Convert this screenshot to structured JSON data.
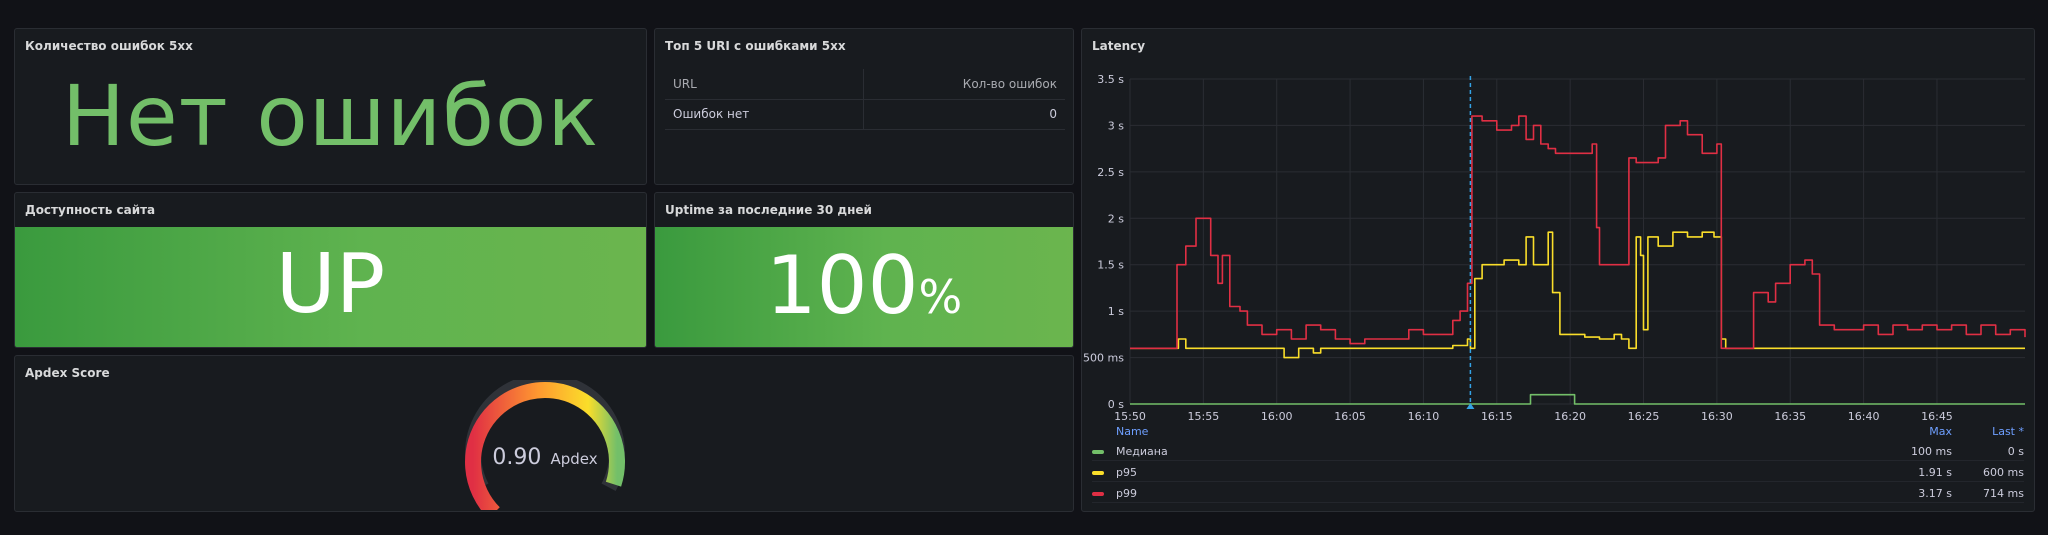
{
  "panels": {
    "errors5xx": {
      "title": "Количество ошибок 5xx",
      "value": "Нет ошибок",
      "color": "#73bf69"
    },
    "top5": {
      "title": "Топ 5 URI с ошибками 5xx",
      "columns": [
        "URL",
        "Кол-во ошибок"
      ],
      "rows": [
        [
          "Ошибок нет",
          "0"
        ]
      ]
    },
    "availability": {
      "title": "Доступность сайта",
      "value": "UP"
    },
    "uptime": {
      "title": "Uptime за последние 30 дней",
      "value": "100",
      "unit": "%"
    },
    "apdex": {
      "title": "Apdex Score",
      "value": "0.90",
      "label": "Apdex",
      "score": 0.9
    },
    "latency": {
      "title": "Latency",
      "legend_headers": {
        "name": "Name",
        "max": "Max",
        "last": "Last *"
      },
      "legend": [
        {
          "name": "Медиана",
          "max": "100 ms",
          "last": "0 s",
          "color": "#73bf69"
        },
        {
          "name": "p95",
          "max": "1.91 s",
          "last": "600 ms",
          "color": "#fade2a"
        },
        {
          "name": "p99",
          "max": "3.17 s",
          "last": "714 ms",
          "color": "#e02f44"
        }
      ]
    }
  },
  "chart_data": {
    "type": "line",
    "title": "Latency",
    "y_ticks": [
      "0 s",
      "500 ms",
      "1 s",
      "1.5 s",
      "2 s",
      "2.5 s",
      "3 s",
      "3.5 s"
    ],
    "x_ticks": [
      "15:50",
      "15:55",
      "16:00",
      "16:05",
      "16:10",
      "16:15",
      "16:20",
      "16:25",
      "16:30",
      "16:35",
      "16:40",
      "16:45"
    ],
    "ylim": [
      0,
      3.5
    ],
    "x_range_minutes_from_1550": [
      0,
      61
    ],
    "cursor_minute": 23.2,
    "grid": true,
    "legend_placement": "bottom",
    "series": [
      {
        "name": "Медиана",
        "color": "#73bf69",
        "points": [
          [
            0,
            0
          ],
          [
            27,
            0
          ],
          [
            27.3,
            0.1
          ],
          [
            30,
            0.1
          ],
          [
            30.3,
            0
          ],
          [
            61,
            0
          ]
        ]
      },
      {
        "name": "p95",
        "color": "#fade2a",
        "points": [
          [
            0,
            0.6
          ],
          [
            3,
            0.6
          ],
          [
            3.3,
            0.7
          ],
          [
            3.8,
            0.6
          ],
          [
            10,
            0.6
          ],
          [
            10.5,
            0.5
          ],
          [
            11.5,
            0.6
          ],
          [
            12.5,
            0.55
          ],
          [
            13,
            0.6
          ],
          [
            20,
            0.6
          ],
          [
            22,
            0.63
          ],
          [
            23,
            0.7
          ],
          [
            23.2,
            0.6
          ],
          [
            23.5,
            1.35
          ],
          [
            24,
            1.5
          ],
          [
            25.5,
            1.55
          ],
          [
            26.5,
            1.5
          ],
          [
            27,
            1.8
          ],
          [
            27.5,
            1.5
          ],
          [
            28.2,
            1.5
          ],
          [
            28.5,
            1.85
          ],
          [
            28.8,
            1.2
          ],
          [
            29.3,
            0.75
          ],
          [
            31,
            0.72
          ],
          [
            32,
            0.7
          ],
          [
            33,
            0.75
          ],
          [
            33.5,
            0.7
          ],
          [
            34,
            0.6
          ],
          [
            34.5,
            1.8
          ],
          [
            34.8,
            1.6
          ],
          [
            35,
            0.8
          ],
          [
            35.3,
            1.8
          ],
          [
            36,
            1.7
          ],
          [
            37,
            1.85
          ],
          [
            38,
            1.8
          ],
          [
            39,
            1.85
          ],
          [
            39.8,
            1.8
          ],
          [
            40.3,
            0.7
          ],
          [
            40.6,
            0.6
          ],
          [
            61,
            0.6
          ]
        ]
      },
      {
        "name": "p99",
        "color": "#e02f44",
        "points": [
          [
            0,
            0.6
          ],
          [
            3,
            0.6
          ],
          [
            3.2,
            1.5
          ],
          [
            3.8,
            1.7
          ],
          [
            4.5,
            2.0
          ],
          [
            5,
            2.0
          ],
          [
            5.5,
            1.6
          ],
          [
            6,
            1.3
          ],
          [
            6.3,
            1.6
          ],
          [
            6.8,
            1.05
          ],
          [
            7.5,
            1.0
          ],
          [
            8,
            0.85
          ],
          [
            9,
            0.75
          ],
          [
            10,
            0.8
          ],
          [
            11,
            0.7
          ],
          [
            12,
            0.85
          ],
          [
            13,
            0.8
          ],
          [
            14,
            0.7
          ],
          [
            15,
            0.65
          ],
          [
            16,
            0.7
          ],
          [
            18,
            0.7
          ],
          [
            19,
            0.8
          ],
          [
            20,
            0.75
          ],
          [
            21.3,
            0.75
          ],
          [
            22,
            0.9
          ],
          [
            22.5,
            1.0
          ],
          [
            23,
            1.3
          ],
          [
            23.3,
            3.1
          ],
          [
            24,
            3.05
          ],
          [
            25,
            2.95
          ],
          [
            26,
            3.0
          ],
          [
            26.5,
            3.1
          ],
          [
            27,
            2.85
          ],
          [
            27.5,
            3.0
          ],
          [
            28,
            2.8
          ],
          [
            28.5,
            2.75
          ],
          [
            29,
            2.7
          ],
          [
            31.5,
            2.8
          ],
          [
            31.8,
            1.9
          ],
          [
            32,
            1.5
          ],
          [
            33.5,
            1.5
          ],
          [
            34,
            2.65
          ],
          [
            34.5,
            2.6
          ],
          [
            36,
            2.65
          ],
          [
            36.5,
            3.0
          ],
          [
            37.5,
            3.05
          ],
          [
            38,
            2.9
          ],
          [
            39,
            2.7
          ],
          [
            40,
            2.8
          ],
          [
            40.3,
            0.6
          ],
          [
            41,
            0.6
          ],
          [
            42,
            0.6
          ],
          [
            42.5,
            1.2
          ],
          [
            43.5,
            1.1
          ],
          [
            44,
            1.3
          ],
          [
            45,
            1.5
          ],
          [
            46,
            1.55
          ],
          [
            46.5,
            1.4
          ],
          [
            47,
            0.85
          ],
          [
            48,
            0.8
          ],
          [
            49,
            0.8
          ],
          [
            50,
            0.85
          ],
          [
            51,
            0.75
          ],
          [
            52,
            0.85
          ],
          [
            53,
            0.8
          ],
          [
            54,
            0.85
          ],
          [
            55,
            0.8
          ],
          [
            56,
            0.85
          ],
          [
            57,
            0.75
          ],
          [
            58,
            0.85
          ],
          [
            59,
            0.75
          ],
          [
            60,
            0.8
          ],
          [
            61,
            0.72
          ]
        ]
      }
    ]
  }
}
